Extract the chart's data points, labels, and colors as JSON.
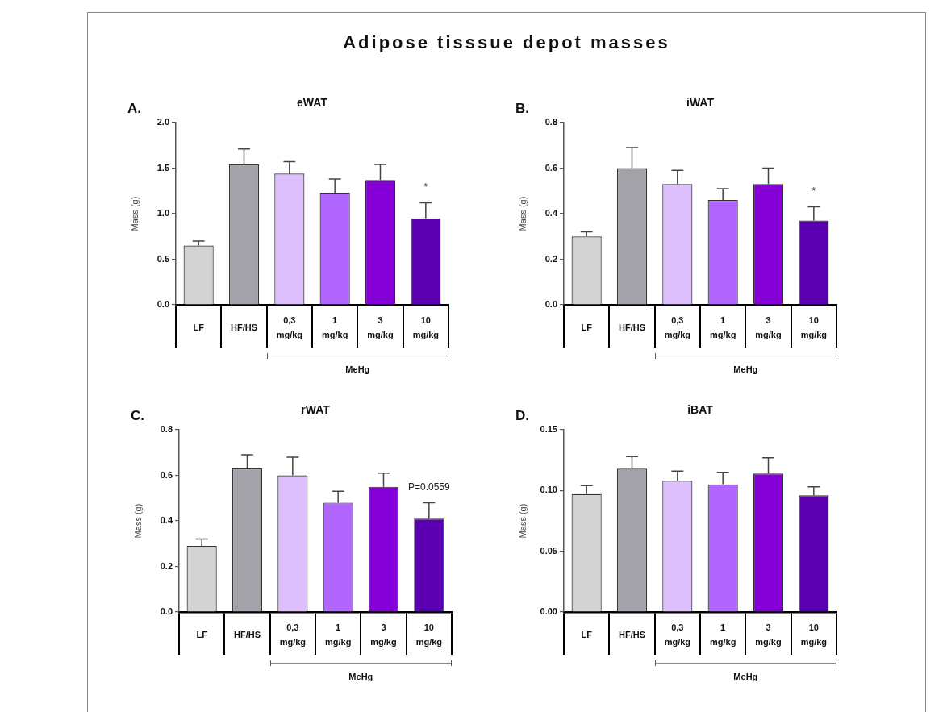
{
  "chart_data": [
    {
      "type": "bar",
      "title": "eWAT",
      "ylabel": "Mass (g)",
      "xlabel": "MeHg",
      "categories": [
        "LF",
        "HF/HS",
        "0,3 mg/kg",
        "1 mg/kg",
        "3 mg/kg",
        "10 mg/kg"
      ],
      "values": [
        0.65,
        1.54,
        1.44,
        1.23,
        1.37,
        0.95
      ],
      "colors": [
        "#d3d3d3",
        "#a3a2a8",
        "#ddbffd",
        "#b066ff",
        "#8500d6",
        "#5a00b0"
      ],
      "errors": [
        [
          0.65,
          0.7
        ],
        [
          1.54,
          1.71
        ],
        [
          1.44,
          1.57
        ],
        [
          1.23,
          1.38
        ],
        [
          1.37,
          1.54
        ],
        [
          0.95,
          1.12
        ]
      ],
      "ylim": [
        0,
        2
      ],
      "yticks": [
        {
          "value": 0,
          "label": "0.0"
        },
        0.5,
        {
          "value": 1,
          "label": "1.0"
        },
        1.5,
        {
          "value": 2,
          "label": "2.0"
        }
      ],
      "annotations": [
        "A.",
        "*",
        "Adipose tisssue depot masses"
      ]
    },
    {
      "type": "bar",
      "title": "iWAT",
      "ylabel": "Mass (g)",
      "xlabel": "MeHg",
      "categories": [
        "LF",
        "HF/HS",
        "0,3 mg/kg",
        "1 mg/kg",
        "3 mg/kg",
        "10 mg/kg"
      ],
      "values": [
        0.3,
        0.6,
        0.53,
        0.46,
        0.53,
        0.37
      ],
      "colors": [
        "#d3d3d3",
        "#a3a2a8",
        "#ddbffd",
        "#b066ff",
        "#8500d6",
        "#5a00b0"
      ],
      "errors": [
        [
          0.3,
          0.32
        ],
        [
          0.6,
          0.69
        ],
        [
          0.53,
          0.59
        ],
        [
          0.46,
          0.51
        ],
        [
          0.53,
          0.6
        ],
        [
          0.37,
          0.43
        ]
      ],
      "ylim": [
        0,
        0.8
      ],
      "yticks": [
        {
          "value": 0,
          "label": "0.0"
        },
        0.2,
        0.4,
        0.6,
        0.8
      ],
      "annotations": [
        "B.",
        "*"
      ]
    },
    {
      "type": "bar",
      "title": "rWAT",
      "ylabel": "Mass (g)",
      "xlabel": "MeHg",
      "categories": [
        "LF",
        "HF/HS",
        "0,3 mg/kg",
        "1 mg/kg",
        "3 mg/kg",
        "10 mg/kg"
      ],
      "values": [
        0.29,
        0.63,
        0.6,
        0.48,
        0.55,
        0.41
      ],
      "colors": [
        "#d3d3d3",
        "#a3a2a8",
        "#ddbffd",
        "#b066ff",
        "#8500d6",
        "#5a00b0"
      ],
      "errors": [
        [
          0.29,
          0.32
        ],
        [
          0.63,
          0.69
        ],
        [
          0.6,
          0.68
        ],
        [
          0.48,
          0.53
        ],
        [
          0.55,
          0.61
        ],
        [
          0.41,
          0.48
        ]
      ],
      "ylim": [
        0,
        0.8
      ],
      "yticks": [
        {
          "value": 0,
          "label": "0.0"
        },
        0.2,
        0.4,
        0.6,
        0.8
      ],
      "annotations": [
        "C.",
        "P=0.0559"
      ]
    },
    {
      "type": "bar",
      "title": "iBAT",
      "ylabel": "Mass (g)",
      "xlabel": "MeHg",
      "categories": [
        "LF",
        "HF/HS",
        "0,3 mg/kg",
        "1 mg/kg",
        "3 mg/kg",
        "10 mg/kg"
      ],
      "values": [
        0.097,
        0.118,
        0.108,
        0.105,
        0.114,
        0.096
      ],
      "colors": [
        "#d3d3d3",
        "#a3a2a8",
        "#ddbffd",
        "#b066ff",
        "#8500d6",
        "#5a00b0"
      ],
      "errors": [
        [
          0.097,
          0.104
        ],
        [
          0.118,
          0.128
        ],
        [
          0.108,
          0.116
        ],
        [
          0.105,
          0.115
        ],
        [
          0.114,
          0.127
        ],
        [
          0.096,
          0.103
        ]
      ],
      "ylim": [
        0,
        0.15
      ],
      "yticks": [
        {
          "value": 0,
          "label": "0.00"
        },
        0.05,
        {
          "value": 0.1,
          "label": "0.10"
        },
        0.15
      ],
      "annotations": [
        "D."
      ]
    }
  ]
}
